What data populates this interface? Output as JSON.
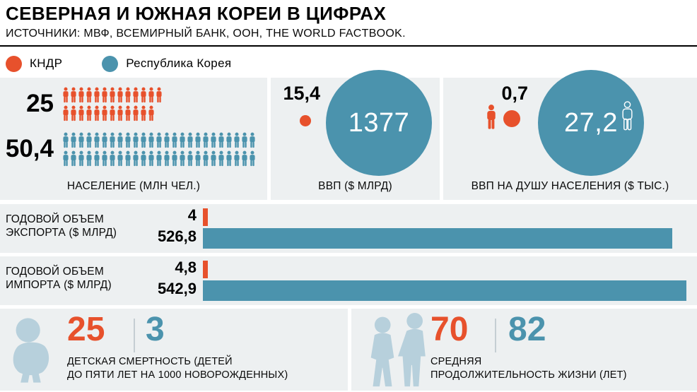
{
  "header": {
    "title": "СЕВЕРНАЯ И ЮЖНАЯ КОРЕИ В ЦИФРАХ",
    "sources": "ИСТОЧНИКИ: МВФ, ВСЕМИРНЫЙ БАНК, ООН, THE WORLD FACTBOOK."
  },
  "legend": {
    "north": "КНДР",
    "south": "Республика Корея"
  },
  "colors": {
    "north": "#e7512c",
    "south": "#4b93ad",
    "panel": "#edf0f1",
    "icon": "#b7d0dc",
    "divider": "#c5ced3",
    "circle_text": "#ffffff"
  },
  "population": {
    "label": "НАСЕЛЕНИЕ (МЛН ЧЕЛ.)",
    "north_text": "25",
    "south_text": "50,4",
    "north_rows": [
      13,
      12
    ],
    "south_rows": [
      25,
      25
    ]
  },
  "gdp": {
    "label": "ВВП ($ МЛРД)",
    "north_text": "15,4",
    "south_text": "1377"
  },
  "gdp_per_capita": {
    "label": "ВВП НА ДУШУ НАСЕЛЕНИЯ ($ ТЫС.)",
    "north_text": "0,7",
    "south_text": "27,2"
  },
  "export": {
    "label_line1": "ГОДОВОЙ ОБЪЕМ",
    "label_line2": "ЭКСПОРТА ($ МЛРД)",
    "north_text": "4",
    "south_text": "526,8"
  },
  "import": {
    "label_line1": "ГОДОВОЙ ОБЪЕМ",
    "label_line2": "ИМПОРТА ($ МЛРД)",
    "north_text": "4,8",
    "south_text": "542,9"
  },
  "child_mortality": {
    "north_text": "25",
    "south_text": "3",
    "label_line1": "ДЕТСКАЯ СМЕРТНОСТЬ (ДЕТЕЙ",
    "label_line2": "ДО ПЯТИ ЛЕТ НА 1000 НОВОРОЖДЕННЫХ)"
  },
  "life_expectancy": {
    "north_text": "70",
    "south_text": "82",
    "label_line1": "СРЕДНЯЯ",
    "label_line2": "ПРОДОЛЖИТЕЛЬНОСТЬ ЖИЗНИ (ЛЕТ)"
  },
  "chart_data": [
    {
      "id": "population",
      "type": "pictogram",
      "title": "НАСЕЛЕНИЕ (МЛН ЧЕЛ.)",
      "categories": [
        "КНДР",
        "Республика Корея"
      ],
      "values": [
        25,
        50.4
      ]
    },
    {
      "id": "gdp",
      "type": "bubble",
      "title": "ВВП ($ МЛРД)",
      "categories": [
        "КНДР",
        "Республика Корея"
      ],
      "values": [
        15.4,
        1377
      ]
    },
    {
      "id": "gdp_per_capita",
      "type": "bubble",
      "title": "ВВП НА ДУШУ НАСЕЛЕНИЯ ($ ТЫС.)",
      "categories": [
        "КНДР",
        "Республика Корея"
      ],
      "values": [
        0.7,
        27.2
      ]
    },
    {
      "id": "export",
      "type": "bar",
      "title": "ГОДОВОЙ ОБЪЕМ ЭКСПОРТА ($ МЛРД)",
      "categories": [
        "КНДР",
        "Республика Корея"
      ],
      "values": [
        4,
        526.8
      ]
    },
    {
      "id": "import",
      "type": "bar",
      "title": "ГОДОВОЙ ОБЪЕМ ИМПОРТА ($ МЛРД)",
      "categories": [
        "КНДР",
        "Республика Корея"
      ],
      "values": [
        4.8,
        542.9
      ]
    },
    {
      "id": "child_mortality",
      "type": "number",
      "title": "ДЕТСКАЯ СМЕРТНОСТЬ (ДЕТЕЙ ДО ПЯТИ ЛЕТ НА 1000 НОВОРОЖДЕННЫХ)",
      "categories": [
        "КНДР",
        "Республика Корея"
      ],
      "values": [
        25,
        3
      ]
    },
    {
      "id": "life_expectancy",
      "type": "number",
      "title": "СРЕДНЯЯ ПРОДОЛЖИТЕЛЬНОСТЬ ЖИЗНИ (ЛЕТ)",
      "categories": [
        "КНДР",
        "Республика Корея"
      ],
      "values": [
        70,
        82
      ]
    }
  ]
}
